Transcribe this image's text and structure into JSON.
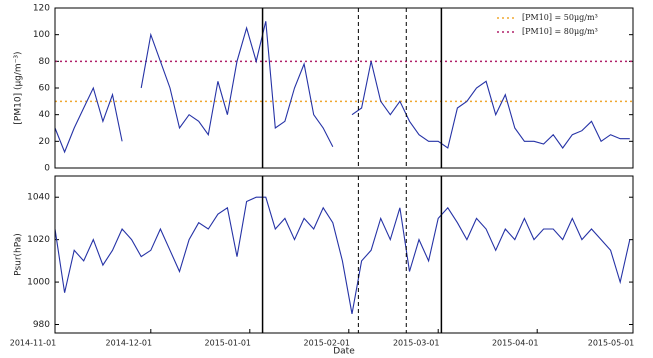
{
  "chart_data": [
    {
      "type": "line",
      "y_label": "[PM10] (μg/m⁻³)",
      "x": [
        "2014-11-01",
        "2014-11-04",
        "2014-11-07",
        "2014-11-10",
        "2014-11-13",
        "2014-11-16",
        "2014-11-19",
        "2014-11-22",
        "2014-11-25",
        "2014-11-28",
        "2014-12-01",
        "2014-12-04",
        "2014-12-07",
        "2014-12-10",
        "2014-12-13",
        "2014-12-16",
        "2014-12-19",
        "2014-12-22",
        "2014-12-25",
        "2014-12-28",
        "2014-12-31",
        "2015-01-03",
        "2015-01-06",
        "2015-01-09",
        "2015-01-12",
        "2015-01-15",
        "2015-01-18",
        "2015-01-21",
        "2015-01-24",
        "2015-01-27",
        "2015-01-30",
        "2015-02-02",
        "2015-02-05",
        "2015-02-08",
        "2015-02-11",
        "2015-02-14",
        "2015-02-17",
        "2015-02-20",
        "2015-02-23",
        "2015-02-26",
        "2015-03-01",
        "2015-03-04",
        "2015-03-07",
        "2015-03-10",
        "2015-03-13",
        "2015-03-16",
        "2015-03-19",
        "2015-03-22",
        "2015-03-25",
        "2015-03-28",
        "2015-03-31",
        "2015-04-03",
        "2015-04-06",
        "2015-04-09",
        "2015-04-12",
        "2015-04-15",
        "2015-04-18",
        "2015-04-21",
        "2015-04-24",
        "2015-04-27",
        "2015-04-30"
      ],
      "series": [
        {
          "name": "PM10",
          "color": "#2633a6",
          "values": [
            30,
            12,
            30,
            45,
            60,
            35,
            55,
            20,
            null,
            60,
            100,
            80,
            60,
            30,
            40,
            35,
            25,
            65,
            40,
            80,
            105,
            80,
            110,
            30,
            35,
            60,
            78,
            40,
            30,
            16,
            null,
            40,
            45,
            80,
            50,
            40,
            50,
            35,
            25,
            20,
            20,
            15,
            45,
            50,
            60,
            65,
            40,
            55,
            30,
            20,
            20,
            18,
            25,
            15,
            25,
            28,
            35,
            20,
            25,
            22,
            22
          ]
        }
      ],
      "hlines": [
        {
          "value": 50,
          "label": "[PM10] = 50μg/m³",
          "color": "#f0a830"
        },
        {
          "value": 80,
          "label": "[PM10] = 80μg/m³",
          "color": "#b0206a"
        }
      ],
      "vlines": [
        {
          "x": "2015-01-05",
          "style": "solid"
        },
        {
          "x": "2015-02-04",
          "style": "dashed"
        },
        {
          "x": "2015-02-19",
          "style": "dashed"
        },
        {
          "x": "2015-03-02",
          "style": "solid"
        }
      ],
      "xlim": [
        "2014-11-01",
        "2015-05-01"
      ],
      "ylim": [
        0,
        120
      ],
      "yticks": [
        0,
        20,
        40,
        60,
        80,
        100,
        120
      ]
    },
    {
      "type": "line",
      "y_label": "Psur(hPa)",
      "x_label": "Date",
      "x": [
        "2014-11-01",
        "2014-11-04",
        "2014-11-07",
        "2014-11-10",
        "2014-11-13",
        "2014-11-16",
        "2014-11-19",
        "2014-11-22",
        "2014-11-25",
        "2014-11-28",
        "2014-12-01",
        "2014-12-04",
        "2014-12-07",
        "2014-12-10",
        "2014-12-13",
        "2014-12-16",
        "2014-12-19",
        "2014-12-22",
        "2014-12-25",
        "2014-12-28",
        "2014-12-31",
        "2015-01-03",
        "2015-01-06",
        "2015-01-09",
        "2015-01-12",
        "2015-01-15",
        "2015-01-18",
        "2015-01-21",
        "2015-01-24",
        "2015-01-27",
        "2015-01-30",
        "2015-02-02",
        "2015-02-05",
        "2015-02-08",
        "2015-02-11",
        "2015-02-14",
        "2015-02-17",
        "2015-02-20",
        "2015-02-23",
        "2015-02-26",
        "2015-03-01",
        "2015-03-04",
        "2015-03-07",
        "2015-03-10",
        "2015-03-13",
        "2015-03-16",
        "2015-03-19",
        "2015-03-22",
        "2015-03-25",
        "2015-03-28",
        "2015-03-31",
        "2015-04-03",
        "2015-04-06",
        "2015-04-09",
        "2015-04-12",
        "2015-04-15",
        "2015-04-18",
        "2015-04-21",
        "2015-04-24",
        "2015-04-27",
        "2015-04-30"
      ],
      "series": [
        {
          "name": "Psur",
          "color": "#2633a6",
          "values": [
            1025,
            995,
            1015,
            1010,
            1020,
            1008,
            1015,
            1025,
            1020,
            1012,
            1015,
            1025,
            1015,
            1005,
            1020,
            1028,
            1025,
            1032,
            1035,
            1012,
            1038,
            1040,
            1040,
            1025,
            1030,
            1020,
            1030,
            1025,
            1035,
            1028,
            1010,
            985,
            1010,
            1015,
            1030,
            1020,
            1035,
            1005,
            1020,
            1010,
            1030,
            1035,
            1028,
            1020,
            1030,
            1025,
            1015,
            1025,
            1020,
            1030,
            1020,
            1025,
            1025,
            1020,
            1030,
            1020,
            1025,
            1020,
            1015,
            1000,
            1020
          ]
        }
      ],
      "vlines": [
        {
          "x": "2015-01-05",
          "style": "solid"
        },
        {
          "x": "2015-02-04",
          "style": "dashed"
        },
        {
          "x": "2015-02-19",
          "style": "dashed"
        },
        {
          "x": "2015-03-02",
          "style": "solid"
        }
      ],
      "xlim": [
        "2014-11-01",
        "2015-05-01"
      ],
      "xticks": [
        "2014-11-01",
        "2014-12-01",
        "2015-01-01",
        "2015-02-01",
        "2015-03-01",
        "2015-04-01",
        "2015-05-01"
      ],
      "ylim": [
        976,
        1050
      ],
      "yticks": [
        980,
        1000,
        1020,
        1040
      ]
    }
  ]
}
